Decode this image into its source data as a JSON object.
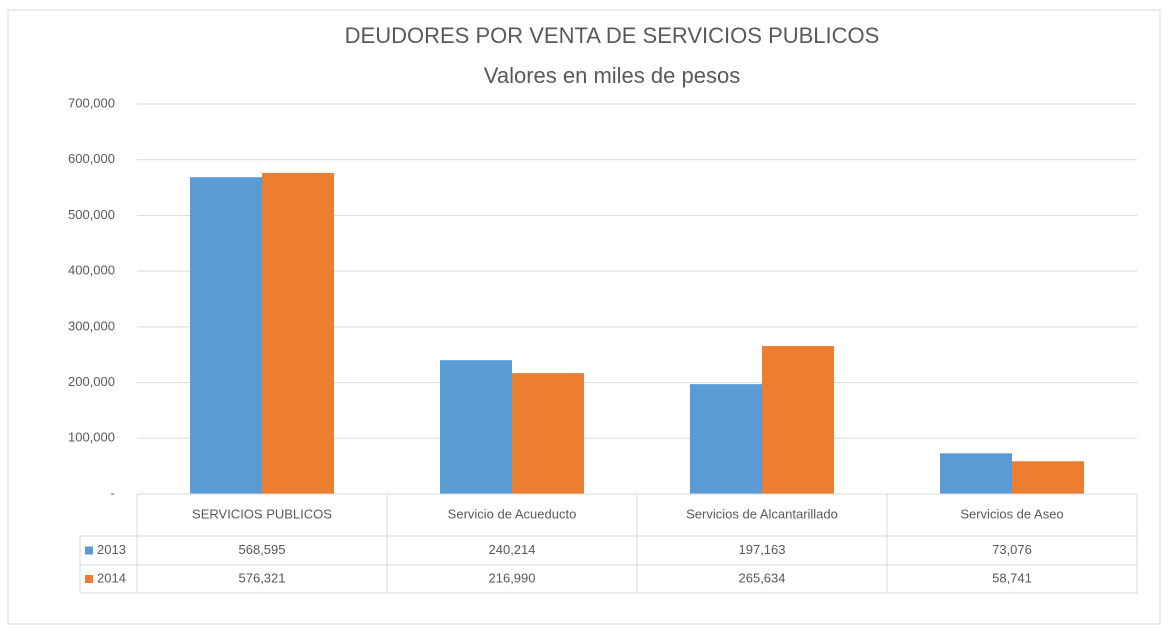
{
  "chart_data": {
    "type": "bar",
    "title": "DEUDORES POR VENTA DE SERVICIOS PUBLICOS",
    "subtitle": "Valores en miles de pesos",
    "categories": [
      "SERVICIOS PUBLICOS",
      "Servicio de Acueducto",
      "Servicios de Alcantarillado",
      "Servicios de Aseo"
    ],
    "series": [
      {
        "name": "2013",
        "color": "#5b9bd5",
        "values": [
          568595,
          240214,
          197163,
          73076
        ],
        "value_labels": [
          "568,595",
          "240,214",
          "197,163",
          "73,076"
        ]
      },
      {
        "name": "2014",
        "color": "#ed7d31",
        "values": [
          576321,
          216990,
          265634,
          58741
        ],
        "value_labels": [
          "576,321",
          "216,990",
          "265,634",
          "58,741"
        ]
      }
    ],
    "ylim": [
      0,
      700000
    ],
    "yticks": [
      {
        "value": 0,
        "label": "-"
      },
      {
        "value": 100000,
        "label": "100,000"
      },
      {
        "value": 200000,
        "label": "200,000"
      },
      {
        "value": 300000,
        "label": "300,000"
      },
      {
        "value": 400000,
        "label": "400,000"
      },
      {
        "value": 500000,
        "label": "500,000"
      },
      {
        "value": 600000,
        "label": "600,000"
      },
      {
        "value": 700000,
        "label": "700,000"
      }
    ],
    "grid": true
  }
}
